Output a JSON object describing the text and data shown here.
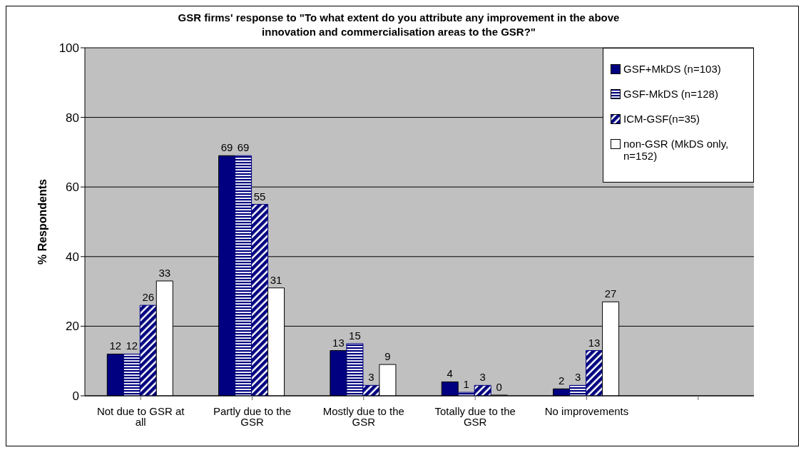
{
  "chart_data": {
    "type": "bar",
    "title": "GSR firms' response to \"To what extent do you attribute any improvement in the above innovation and commercialisation areas to the GSR?\"",
    "ylabel": "% Respondents",
    "categories": [
      "Not due to GSR at all",
      "Partly due to the GSR",
      "Mostly due to the GSR",
      "Totally due to the GSR",
      "No improvements",
      null
    ],
    "series": [
      {
        "name": "GSF+MkDS (n=103)",
        "color": "#000080",
        "values": [
          12,
          69,
          13,
          4,
          2,
          null
        ]
      },
      {
        "name": "GSF-MkDS (n=128)",
        "color": "#000080",
        "values": [
          12,
          69,
          15,
          1,
          3,
          null
        ]
      },
      {
        "name": "ICM-GSF(n=35)",
        "color": "#000080",
        "values": [
          26,
          55,
          3,
          3,
          13,
          null
        ]
      },
      {
        "name": "non-GSR (MkDS only, n=152)",
        "color": "#ffffff",
        "values": [
          33,
          31,
          9,
          0,
          27,
          null
        ]
      }
    ],
    "ylim": [
      0,
      100
    ],
    "yticks": [
      0,
      20,
      40,
      60,
      80,
      100
    ],
    "grid": "y",
    "legend": "top right",
    "data_labels": true
  }
}
